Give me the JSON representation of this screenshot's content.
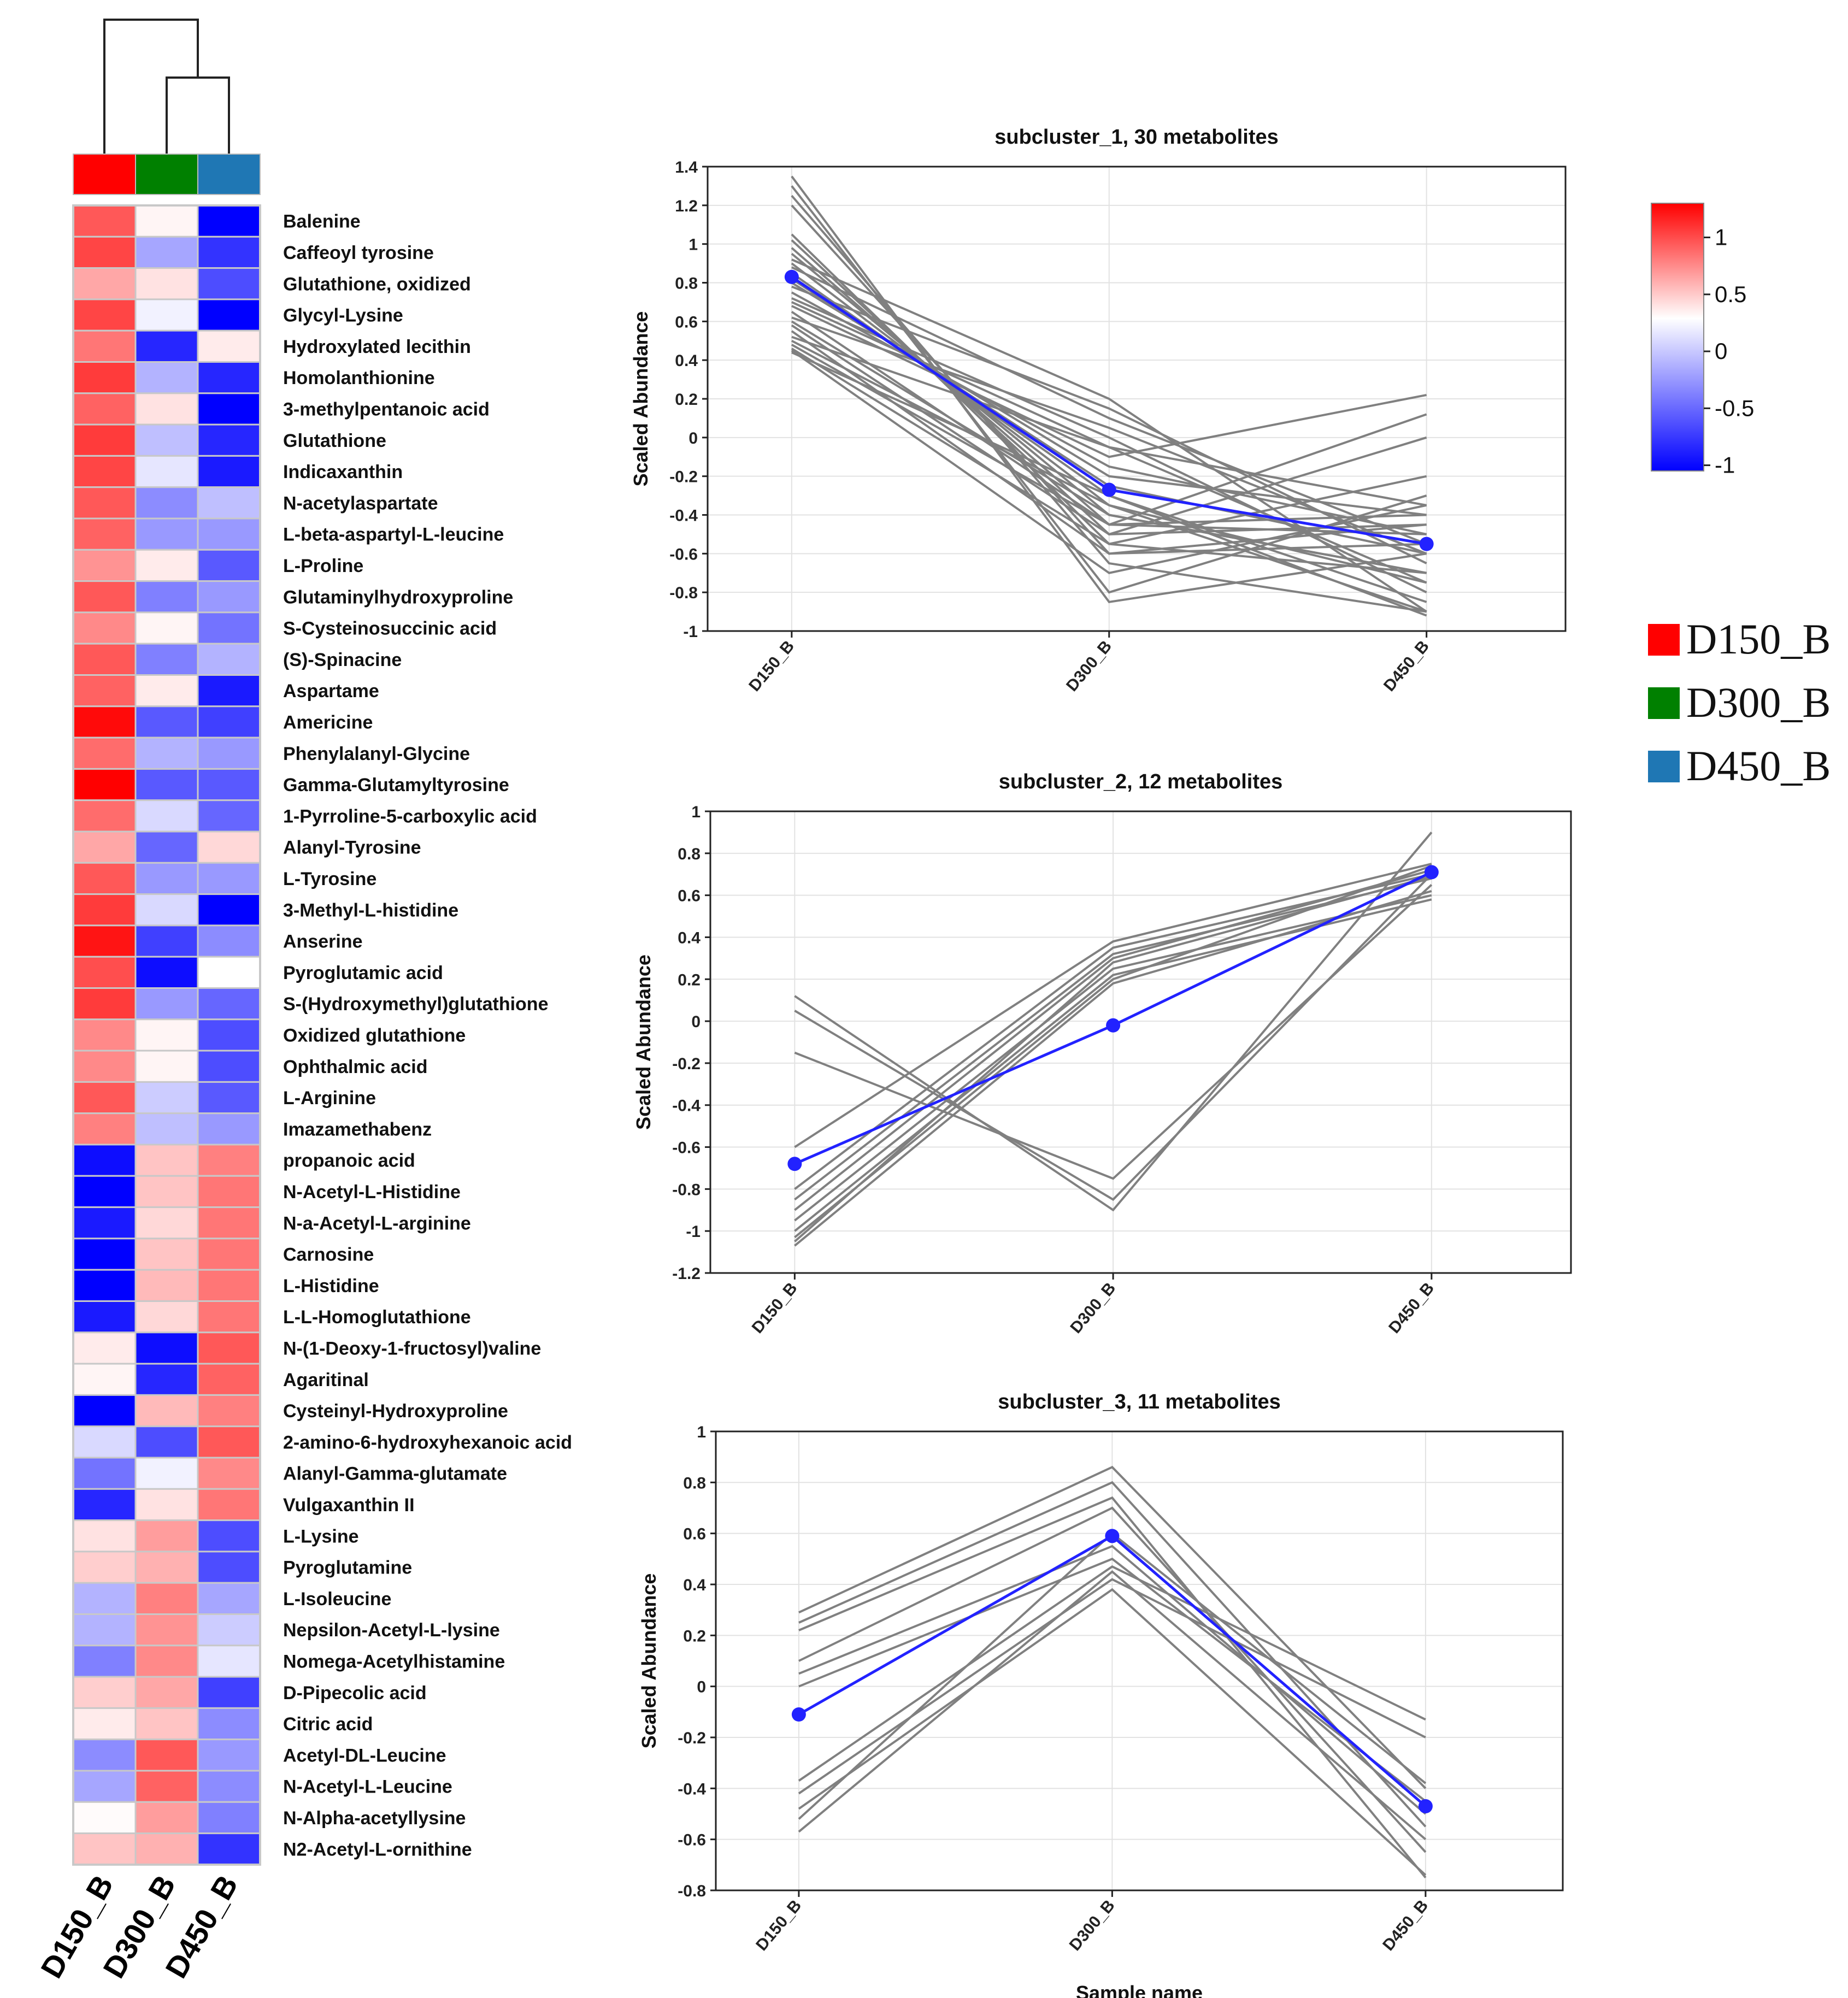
{
  "colors": {
    "high": "#ff0000",
    "mid": "#ffffff",
    "low": "#0000ff",
    "member_line": "#808080",
    "centroid": "#2222ff",
    "D150_B": "#ff0000",
    "D300_B": "#008000",
    "D450_B": "#1f77b4"
  },
  "chart_data": [
    {
      "type": "heatmap",
      "columns": [
        "D150_B",
        "D300_B",
        "D450_B"
      ],
      "column_order_note": "dendrogram joins D300_B and D450_B first, then D150_B",
      "dendrogram_merges": [
        [
          "D300_B",
          "D450_B"
        ],
        [
          "D150_B",
          "D300_B+D450_B"
        ]
      ],
      "color_scale": {
        "min": -1,
        "max": 1.3
      },
      "rows": [
        {
          "label": "Balenine",
          "values": [
            0.85,
            0.05,
            -1.05
          ]
        },
        {
          "label": "Caffeoyl tyrosine",
          "values": [
            0.95,
            -0.35,
            -0.8
          ]
        },
        {
          "label": "Glutathione, oxidized",
          "values": [
            0.45,
            0.15,
            -0.7
          ]
        },
        {
          "label": "Glycyl-Lysine",
          "values": [
            0.95,
            -0.05,
            -1.0
          ]
        },
        {
          "label": "Hydroxylated lecithin",
          "values": [
            0.7,
            -0.85,
            0.1
          ]
        },
        {
          "label": "Homolanthionine",
          "values": [
            1.0,
            -0.3,
            -0.85
          ]
        },
        {
          "label": "3-methylpentanoic acid",
          "values": [
            0.8,
            0.15,
            -1.0
          ]
        },
        {
          "label": "Glutathione",
          "values": [
            1.0,
            -0.25,
            -0.85
          ]
        },
        {
          "label": "Indicaxanthin",
          "values": [
            0.95,
            -0.1,
            -0.9
          ]
        },
        {
          "label": "N-acetylaspartate",
          "values": [
            0.85,
            -0.45,
            -0.25
          ]
        },
        {
          "label": "L-beta-aspartyl-L-leucine",
          "values": [
            0.8,
            -0.4,
            -0.4
          ]
        },
        {
          "label": "L-Proline",
          "values": [
            0.55,
            0.1,
            -0.65
          ]
        },
        {
          "label": "Glutaminylhydroxyproline",
          "values": [
            0.85,
            -0.5,
            -0.4
          ]
        },
        {
          "label": "S-Cysteinosuccinic acid",
          "values": [
            0.6,
            0.05,
            -0.55
          ]
        },
        {
          "label": "(S)-Spinacine",
          "values": [
            0.85,
            -0.5,
            -0.3
          ]
        },
        {
          "label": "Aspartame",
          "values": [
            0.8,
            0.1,
            -0.9
          ]
        },
        {
          "label": "Americine",
          "values": [
            1.25,
            -0.65,
            -0.75
          ]
        },
        {
          "label": "Phenylalanyl-Glycine",
          "values": [
            0.75,
            -0.3,
            -0.4
          ]
        },
        {
          "label": "Gamma-Glutamyltyrosine",
          "values": [
            1.3,
            -0.65,
            -0.65
          ]
        },
        {
          "label": "1-Pyrroline-5-carboxylic acid",
          "values": [
            0.75,
            -0.15,
            -0.6
          ]
        },
        {
          "label": "Alanyl-Tyrosine",
          "values": [
            0.45,
            -0.6,
            0.2
          ]
        },
        {
          "label": "L-Tyrosine",
          "values": [
            0.85,
            -0.4,
            -0.4
          ]
        },
        {
          "label": "3-Methyl-L-histidine",
          "values": [
            1.0,
            -0.15,
            -1.0
          ]
        },
        {
          "label": "Anserine",
          "values": [
            1.2,
            -0.75,
            -0.45
          ]
        },
        {
          "label": "Pyroglutamic acid",
          "values": [
            0.9,
            -0.95,
            0.0
          ]
        },
        {
          "label": "S-(Hydroxymethyl)glutathione",
          "values": [
            1.0,
            -0.4,
            -0.6
          ]
        },
        {
          "label": "Oxidized glutathione",
          "values": [
            0.6,
            0.05,
            -0.7
          ]
        },
        {
          "label": "Ophthalmic acid",
          "values": [
            0.6,
            0.05,
            -0.7
          ]
        },
        {
          "label": "L-Arginine",
          "values": [
            0.85,
            -0.2,
            -0.65
          ]
        },
        {
          "label": "Imazamethabenz",
          "values": [
            0.65,
            -0.25,
            -0.4
          ]
        },
        {
          "label": "propanoic acid",
          "values": [
            -0.95,
            0.3,
            0.65
          ]
        },
        {
          "label": "N-Acetyl-L-Histidine",
          "values": [
            -1.0,
            0.3,
            0.7
          ]
        },
        {
          "label": "N-a-Acetyl-L-arginine",
          "values": [
            -0.9,
            0.2,
            0.7
          ]
        },
        {
          "label": "Carnosine",
          "values": [
            -1.0,
            0.3,
            0.7
          ]
        },
        {
          "label": "L-Histidine",
          "values": [
            -1.05,
            0.35,
            0.7
          ]
        },
        {
          "label": "L-L-Homoglutathione",
          "values": [
            -0.9,
            0.2,
            0.7
          ]
        },
        {
          "label": "N-(1-Deoxy-1-fructosyl)valine",
          "values": [
            0.1,
            -0.95,
            0.85
          ]
        },
        {
          "label": "Agaritinal",
          "values": [
            0.05,
            -0.85,
            0.8
          ]
        },
        {
          "label": "Cysteinyl-Hydroxyproline",
          "values": [
            -1.0,
            0.35,
            0.65
          ]
        },
        {
          "label": "2-amino-6-hydroxyhexanoic acid",
          "values": [
            -0.15,
            -0.7,
            0.85
          ]
        },
        {
          "label": "Alanyl-Gamma-glutamate",
          "values": [
            -0.55,
            -0.05,
            0.6
          ]
        },
        {
          "label": "Vulgaxanthin II",
          "values": [
            -0.85,
            0.15,
            0.7
          ]
        },
        {
          "label": "L-Lysine",
          "values": [
            0.15,
            0.5,
            -0.7
          ]
        },
        {
          "label": "Pyroglutamine",
          "values": [
            0.25,
            0.4,
            -0.7
          ]
        },
        {
          "label": "L-Isoleucine",
          "values": [
            -0.3,
            0.65,
            -0.35
          ]
        },
        {
          "label": "Nepsilon-Acetyl-L-lysine",
          "values": [
            -0.3,
            0.55,
            -0.2
          ]
        },
        {
          "label": "Nomega-Acetylhistamine",
          "values": [
            -0.5,
            0.6,
            -0.1
          ]
        },
        {
          "label": "D-Pipecolic acid",
          "values": [
            0.25,
            0.45,
            -0.75
          ]
        },
        {
          "label": "Citric acid",
          "values": [
            0.1,
            0.3,
            -0.45
          ]
        },
        {
          "label": "Acetyl-DL-Leucine",
          "values": [
            -0.45,
            0.85,
            -0.4
          ]
        },
        {
          "label": "N-Acetyl-L-Leucine",
          "values": [
            -0.35,
            0.8,
            -0.45
          ]
        },
        {
          "label": "N-Alpha-acetyllysine",
          "values": [
            0.02,
            0.5,
            -0.5
          ]
        },
        {
          "label": "N2-Acetyl-L-ornithine",
          "values": [
            0.3,
            0.4,
            -0.8
          ]
        }
      ],
      "colorbar_ticks": [
        "1",
        "0.5",
        "0",
        "-0.5",
        "-1"
      ],
      "legend": [
        "D150_B",
        "D300_B",
        "D450_B"
      ]
    },
    {
      "type": "line",
      "title": "subcluster_1, 30 metabolites",
      "xlabel": "",
      "ylabel": "Scaled Abundance",
      "categories": [
        "D150_B",
        "D300_B",
        "D450_B"
      ],
      "ylim": [
        -1,
        1.4
      ],
      "yticks": [
        1.4,
        1.2,
        1,
        0.8,
        0.6,
        0.4,
        0.2,
        0,
        -0.2,
        -0.4,
        -0.6,
        -0.8,
        -1
      ],
      "grid": true,
      "centroid": [
        0.83,
        -0.27,
        -0.55
      ],
      "members": [
        [
          1.35,
          -0.85,
          -0.6
        ],
        [
          1.3,
          -0.8,
          -0.3
        ],
        [
          1.25,
          -0.65,
          -0.9
        ],
        [
          1.2,
          -0.6,
          -0.55
        ],
        [
          1.05,
          -0.55,
          -0.7
        ],
        [
          1.02,
          -0.5,
          -0.45
        ],
        [
          0.98,
          -0.45,
          -0.5
        ],
        [
          0.95,
          -0.4,
          -0.7
        ],
        [
          0.92,
          0.2,
          -0.9
        ],
        [
          0.9,
          -0.35,
          -0.75
        ],
        [
          0.88,
          0.1,
          -0.55
        ],
        [
          0.85,
          -0.3,
          -0.85
        ],
        [
          0.82,
          -0.25,
          -0.6
        ],
        [
          0.8,
          -0.2,
          -0.4
        ],
        [
          0.78,
          0.15,
          -0.65
        ],
        [
          0.75,
          -0.15,
          -0.5
        ],
        [
          0.72,
          0.0,
          -0.8
        ],
        [
          0.7,
          -0.05,
          -0.35
        ],
        [
          0.68,
          -0.1,
          0.22
        ],
        [
          0.65,
          -0.45,
          0.12
        ],
        [
          0.62,
          0.05,
          -0.6
        ],
        [
          0.6,
          -0.4,
          -0.7
        ],
        [
          0.58,
          -0.5,
          0.0
        ],
        [
          0.55,
          -0.6,
          -0.45
        ],
        [
          0.52,
          -0.05,
          -0.75
        ],
        [
          0.5,
          -0.35,
          -0.9
        ],
        [
          0.48,
          -0.45,
          -0.4
        ],
        [
          0.46,
          -0.55,
          -0.2
        ],
        [
          0.45,
          -0.7,
          -0.35
        ],
        [
          0.44,
          -0.3,
          -0.92
        ]
      ]
    },
    {
      "type": "line",
      "title": "subcluster_2, 12 metabolites",
      "xlabel": "",
      "ylabel": "Scaled Abundance",
      "categories": [
        "D150_B",
        "D300_B",
        "D450_B"
      ],
      "ylim": [
        -1.2,
        1
      ],
      "yticks": [
        1,
        0.8,
        0.6,
        0.4,
        0.2,
        0,
        -0.2,
        -0.4,
        -0.6,
        -0.8,
        -1,
        -1.2
      ],
      "grid": true,
      "centroid": [
        -0.68,
        -0.02,
        0.71
      ],
      "members": [
        [
          0.12,
          -0.9,
          0.9
        ],
        [
          0.05,
          -0.85,
          0.7
        ],
        [
          -0.15,
          -0.75,
          0.65
        ],
        [
          -0.6,
          0.38,
          0.75
        ],
        [
          -0.8,
          0.35,
          0.7
        ],
        [
          -0.85,
          0.32,
          0.68
        ],
        [
          -0.9,
          0.3,
          0.72
        ],
        [
          -0.95,
          0.25,
          0.6
        ],
        [
          -1.0,
          0.22,
          0.58
        ],
        [
          -1.03,
          0.2,
          0.74
        ],
        [
          -1.05,
          0.28,
          0.69
        ],
        [
          -1.07,
          0.18,
          0.62
        ]
      ]
    },
    {
      "type": "line",
      "title": "subcluster_3, 11 metabolites",
      "xlabel": "Sample name",
      "ylabel": "Scaled Abundance",
      "categories": [
        "D150_B",
        "D300_B",
        "D450_B"
      ],
      "ylim": [
        -0.8,
        1
      ],
      "yticks": [
        1,
        0.8,
        0.6,
        0.4,
        0.2,
        0,
        -0.2,
        -0.4,
        -0.6,
        -0.8
      ],
      "grid": true,
      "centroid": [
        -0.11,
        0.59,
        -0.47
      ],
      "members": [
        [
          0.29,
          0.86,
          -0.4
        ],
        [
          0.25,
          0.8,
          -0.55
        ],
        [
          0.22,
          0.74,
          -0.75
        ],
        [
          0.1,
          0.7,
          -0.65
        ],
        [
          0.05,
          0.55,
          -0.5
        ],
        [
          0.0,
          0.5,
          -0.45
        ],
        [
          -0.37,
          0.47,
          -0.13
        ],
        [
          -0.42,
          0.42,
          -0.2
        ],
        [
          -0.48,
          0.38,
          -0.74
        ],
        [
          -0.52,
          0.6,
          -0.38
        ],
        [
          -0.57,
          0.45,
          -0.6
        ]
      ]
    }
  ]
}
